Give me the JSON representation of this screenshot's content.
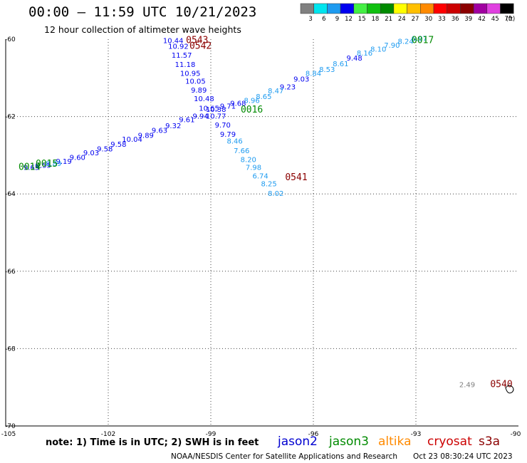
{
  "header": {
    "title": "00:00 – 11:59 UTC 10/21/2023",
    "subtitle": "12 hour collection of altimeter wave heights"
  },
  "legend": {
    "unit": "(ft)",
    "bins": [
      {
        "label": "3",
        "color": "#808080"
      },
      {
        "label": "6",
        "color": "#00e5ee"
      },
      {
        "label": "9",
        "color": "#1e9bf0"
      },
      {
        "label": "12",
        "color": "#0000f0"
      },
      {
        "label": "15",
        "color": "#44f044"
      },
      {
        "label": "18",
        "color": "#10c010"
      },
      {
        "label": "21",
        "color": "#008a00"
      },
      {
        "label": "24",
        "color": "#ffff00"
      },
      {
        "label": "27",
        "color": "#ffc000"
      },
      {
        "label": "30",
        "color": "#ff8a00"
      },
      {
        "label": "33",
        "color": "#ff0000"
      },
      {
        "label": "36",
        "color": "#cc0000"
      },
      {
        "label": "39",
        "color": "#8b0000"
      },
      {
        "label": "42",
        "color": "#a000a0"
      },
      {
        "label": "45",
        "color": "#e040e0"
      },
      {
        "label": "70",
        "color": "#000000"
      }
    ]
  },
  "footer": {
    "note": "note:  1) Time is in UTC; 2) SWH is in feet",
    "credit": "NOAA/NESDIS Center for Satellite Applications and Research",
    "timestamp": "Oct 23 08:30:24 UTC 2023",
    "satellites": [
      {
        "name": "jason2",
        "color": "#0000d0"
      },
      {
        "name": "jason3",
        "color": "#008a00"
      },
      {
        "name": "altika",
        "color": "#ff8a00"
      },
      {
        "name": "cryosat",
        "color": "#cc0000"
      },
      {
        "name": "s3a",
        "color": "#8b0000"
      }
    ]
  },
  "chart_data": {
    "type": "scatter",
    "xlim": [
      -105,
      -90
    ],
    "ylim": [
      -70,
      -60
    ],
    "x_ticks": [
      -105,
      -102,
      -99,
      -96,
      -93,
      -90
    ],
    "x_tick_labels": [
      "-105",
      "-102",
      "-99",
      "-96",
      "-93",
      "-90"
    ],
    "y_ticks": [
      -60,
      -62,
      -64,
      -66,
      -68,
      -70
    ],
    "y_tick_labels": [
      "-60",
      "-62",
      "-64",
      "-66",
      "-68",
      "-70"
    ],
    "grid": true,
    "tracks": [
      {
        "name": "0017",
        "label": {
          "text": "0017",
          "lon": -92.8,
          "lat": -60.1,
          "color": "#008a00"
        },
        "points": [
          {
            "lon": -92.9,
            "lat": -60.05,
            "v": "6.97",
            "color": "#1e9bf0"
          },
          {
            "lon": -93.3,
            "lat": -60.12,
            "v": "8.24",
            "color": "#1e9bf0"
          },
          {
            "lon": -93.7,
            "lat": -60.22,
            "v": "7.90",
            "color": "#1e9bf0"
          },
          {
            "lon": -94.1,
            "lat": -60.32,
            "v": "8.10",
            "color": "#1e9bf0"
          },
          {
            "lon": -94.5,
            "lat": -60.42,
            "v": "8.16",
            "color": "#1e9bf0"
          },
          {
            "lon": -94.8,
            "lat": -60.55,
            "v": "9.48",
            "color": "#0000f0"
          },
          {
            "lon": -95.2,
            "lat": -60.7,
            "v": "8.61",
            "color": "#1e9bf0"
          },
          {
            "lon": -95.6,
            "lat": -60.85,
            "v": "8.53",
            "color": "#1e9bf0"
          },
          {
            "lon": -96.0,
            "lat": -60.95,
            "v": "8.84",
            "color": "#1e9bf0"
          },
          {
            "lon": -96.35,
            "lat": -61.1,
            "v": "9.03",
            "color": "#0000f0"
          },
          {
            "lon": -96.75,
            "lat": -61.3,
            "v": "9.23",
            "color": "#0000f0"
          },
          {
            "lon": -97.1,
            "lat": -61.4,
            "v": "8.47",
            "color": "#1e9bf0"
          },
          {
            "lon": -97.45,
            "lat": -61.55,
            "v": "8.65",
            "color": "#1e9bf0"
          },
          {
            "lon": -97.8,
            "lat": -61.65,
            "v": "8.96",
            "color": "#1e9bf0"
          },
          {
            "lon": -98.2,
            "lat": -61.72,
            "v": "9.68",
            "color": "#0000f0"
          },
          {
            "lon": -98.5,
            "lat": -61.8,
            "v": "9.71",
            "color": "#0000f0"
          },
          {
            "lon": -98.85,
            "lat": -61.88,
            "v": "10.38",
            "color": "#0000f0"
          }
        ]
      },
      {
        "name": "0016",
        "label": {
          "text": "0016",
          "lon": -97.8,
          "lat": -61.9,
          "color": "#008a00"
        },
        "points": []
      },
      {
        "name": "0015",
        "label": {
          "text": "0015",
          "lon": -103.8,
          "lat": -63.3,
          "color": "#008a00"
        },
        "points": [
          {
            "lon": -99.3,
            "lat": -62.05,
            "v": "9.94",
            "color": "#0000f0"
          },
          {
            "lon": -99.7,
            "lat": -62.15,
            "v": "9.61",
            "color": "#0000f0"
          },
          {
            "lon": -100.1,
            "lat": -62.3,
            "v": "9.32",
            "color": "#0000f0"
          },
          {
            "lon": -100.5,
            "lat": -62.42,
            "v": "9.63",
            "color": "#0000f0"
          },
          {
            "lon": -100.9,
            "lat": -62.55,
            "v": "9.89",
            "color": "#0000f0"
          },
          {
            "lon": -101.3,
            "lat": -62.65,
            "v": "10.04",
            "color": "#0000f0"
          },
          {
            "lon": -101.7,
            "lat": -62.78,
            "v": "9.58",
            "color": "#0000f0"
          },
          {
            "lon": -102.1,
            "lat": -62.9,
            "v": "9.58",
            "color": "#0000f0"
          },
          {
            "lon": -102.5,
            "lat": -63.0,
            "v": "9.03",
            "color": "#0000f0"
          },
          {
            "lon": -102.9,
            "lat": -63.12,
            "v": "9.60",
            "color": "#0000f0"
          },
          {
            "lon": -103.3,
            "lat": -63.22,
            "v": "9.19",
            "color": "#0000f0"
          },
          {
            "lon": -103.6,
            "lat": -63.28,
            "v": "8.89",
            "color": "#1e9bf0"
          },
          {
            "lon": -103.9,
            "lat": -63.32,
            "v": "9.55",
            "color": "#0000f0"
          },
          {
            "lon": -104.25,
            "lat": -63.38,
            "v": "9.65",
            "color": "#0000f0"
          }
        ]
      },
      {
        "name": "0014",
        "label": {
          "text": "0014",
          "lon": -104.3,
          "lat": -63.38,
          "color": "#008a00"
        },
        "points": []
      },
      {
        "name": "0543",
        "label": {
          "text": "0543",
          "lon": -99.4,
          "lat": -60.1,
          "color": "#8b0000"
        },
        "points": [
          {
            "lon": -100.1,
            "lat": -60.1,
            "v": "10.44",
            "color": "#0000f0"
          },
          {
            "lon": -99.95,
            "lat": -60.25,
            "v": "10.92",
            "color": "#0000f0"
          },
          {
            "lon": -99.85,
            "lat": -60.48,
            "v": "11.57",
            "color": "#0000f0"
          },
          {
            "lon": -99.75,
            "lat": -60.72,
            "v": "11.18",
            "color": "#0000f0"
          },
          {
            "lon": -99.6,
            "lat": -60.95,
            "v": "10.95",
            "color": "#0000f0"
          },
          {
            "lon": -99.45,
            "lat": -61.15,
            "v": "10.05",
            "color": "#0000f0"
          },
          {
            "lon": -99.35,
            "lat": -61.38,
            "v": "9.89",
            "color": "#0000f0"
          },
          {
            "lon": -99.2,
            "lat": -61.6,
            "v": "10.48",
            "color": "#0000f0"
          },
          {
            "lon": -99.05,
            "lat": -61.85,
            "v": "10.65",
            "color": "#0000f0"
          },
          {
            "lon": -98.85,
            "lat": -62.05,
            "v": "10.77",
            "color": "#0000f0"
          },
          {
            "lon": -98.65,
            "lat": -62.28,
            "v": "9.70",
            "color": "#0000f0"
          },
          {
            "lon": -98.5,
            "lat": -62.52,
            "v": "9.79",
            "color": "#0000f0"
          },
          {
            "lon": -98.3,
            "lat": -62.7,
            "v": "8.46",
            "color": "#1e9bf0"
          },
          {
            "lon": -98.1,
            "lat": -62.95,
            "v": "7.66",
            "color": "#1e9bf0"
          },
          {
            "lon": -97.9,
            "lat": -63.18,
            "v": "8.20",
            "color": "#1e9bf0"
          },
          {
            "lon": -97.75,
            "lat": -63.38,
            "v": "7.98",
            "color": "#1e9bf0"
          },
          {
            "lon": -97.55,
            "lat": -63.6,
            "v": "6.74",
            "color": "#1e9bf0"
          },
          {
            "lon": -97.3,
            "lat": -63.8,
            "v": "8.25",
            "color": "#1e9bf0"
          },
          {
            "lon": -97.1,
            "lat": -64.05,
            "v": "8.02",
            "color": "#1e9bf0"
          }
        ]
      },
      {
        "name": "0542",
        "label": {
          "text": "0542",
          "lon": -99.3,
          "lat": -60.25,
          "color": "#8b0000"
        },
        "points": []
      },
      {
        "name": "0541",
        "label": {
          "text": "0541",
          "lon": -96.5,
          "lat": -63.65,
          "color": "#8b0000"
        },
        "points": []
      },
      {
        "name": "0540",
        "label": {
          "text": "0540",
          "lon": -90.5,
          "lat": -69.0,
          "color": "#8b0000"
        },
        "points": [
          {
            "lon": -91.5,
            "lat": -69.0,
            "v": "2.49",
            "color": "#808080"
          }
        ]
      }
    ]
  }
}
